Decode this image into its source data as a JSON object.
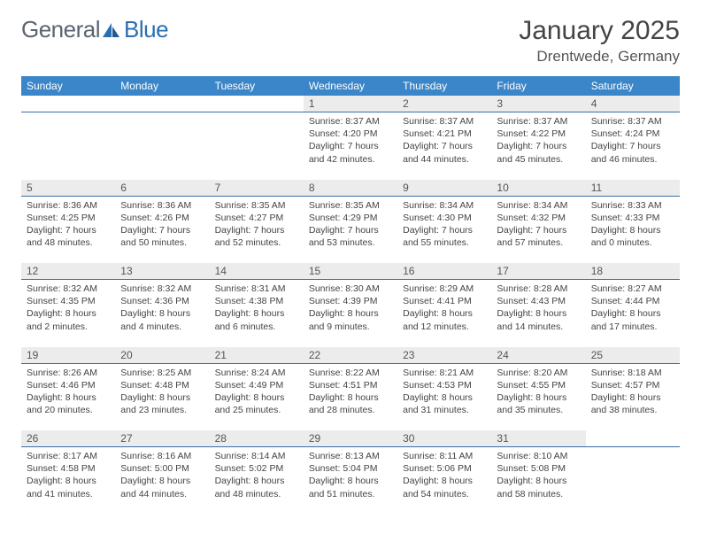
{
  "brand": {
    "part1": "General",
    "part2": "Blue"
  },
  "title": "January 2025",
  "location": "Drentwede, Germany",
  "colors": {
    "header_bg": "#3a86c8",
    "header_fg": "#ffffff",
    "daynum_bg": "#ececec",
    "separator": "#3a6ea5",
    "text": "#444444",
    "logo_gray": "#5a6570",
    "logo_blue": "#2b6fb0"
  },
  "days_of_week": [
    "Sunday",
    "Monday",
    "Tuesday",
    "Wednesday",
    "Thursday",
    "Friday",
    "Saturday"
  ],
  "weeks": [
    [
      {
        "n": "",
        "sr": "",
        "ss": "",
        "dl": ""
      },
      {
        "n": "",
        "sr": "",
        "ss": "",
        "dl": ""
      },
      {
        "n": "",
        "sr": "",
        "ss": "",
        "dl": ""
      },
      {
        "n": "1",
        "sr": "8:37 AM",
        "ss": "4:20 PM",
        "dl": "7 hours and 42 minutes."
      },
      {
        "n": "2",
        "sr": "8:37 AM",
        "ss": "4:21 PM",
        "dl": "7 hours and 44 minutes."
      },
      {
        "n": "3",
        "sr": "8:37 AM",
        "ss": "4:22 PM",
        "dl": "7 hours and 45 minutes."
      },
      {
        "n": "4",
        "sr": "8:37 AM",
        "ss": "4:24 PM",
        "dl": "7 hours and 46 minutes."
      }
    ],
    [
      {
        "n": "5",
        "sr": "8:36 AM",
        "ss": "4:25 PM",
        "dl": "7 hours and 48 minutes."
      },
      {
        "n": "6",
        "sr": "8:36 AM",
        "ss": "4:26 PM",
        "dl": "7 hours and 50 minutes."
      },
      {
        "n": "7",
        "sr": "8:35 AM",
        "ss": "4:27 PM",
        "dl": "7 hours and 52 minutes."
      },
      {
        "n": "8",
        "sr": "8:35 AM",
        "ss": "4:29 PM",
        "dl": "7 hours and 53 minutes."
      },
      {
        "n": "9",
        "sr": "8:34 AM",
        "ss": "4:30 PM",
        "dl": "7 hours and 55 minutes."
      },
      {
        "n": "10",
        "sr": "8:34 AM",
        "ss": "4:32 PM",
        "dl": "7 hours and 57 minutes."
      },
      {
        "n": "11",
        "sr": "8:33 AM",
        "ss": "4:33 PM",
        "dl": "8 hours and 0 minutes."
      }
    ],
    [
      {
        "n": "12",
        "sr": "8:32 AM",
        "ss": "4:35 PM",
        "dl": "8 hours and 2 minutes."
      },
      {
        "n": "13",
        "sr": "8:32 AM",
        "ss": "4:36 PM",
        "dl": "8 hours and 4 minutes."
      },
      {
        "n": "14",
        "sr": "8:31 AM",
        "ss": "4:38 PM",
        "dl": "8 hours and 6 minutes."
      },
      {
        "n": "15",
        "sr": "8:30 AM",
        "ss": "4:39 PM",
        "dl": "8 hours and 9 minutes."
      },
      {
        "n": "16",
        "sr": "8:29 AM",
        "ss": "4:41 PM",
        "dl": "8 hours and 12 minutes."
      },
      {
        "n": "17",
        "sr": "8:28 AM",
        "ss": "4:43 PM",
        "dl": "8 hours and 14 minutes."
      },
      {
        "n": "18",
        "sr": "8:27 AM",
        "ss": "4:44 PM",
        "dl": "8 hours and 17 minutes."
      }
    ],
    [
      {
        "n": "19",
        "sr": "8:26 AM",
        "ss": "4:46 PM",
        "dl": "8 hours and 20 minutes."
      },
      {
        "n": "20",
        "sr": "8:25 AM",
        "ss": "4:48 PM",
        "dl": "8 hours and 23 minutes."
      },
      {
        "n": "21",
        "sr": "8:24 AM",
        "ss": "4:49 PM",
        "dl": "8 hours and 25 minutes."
      },
      {
        "n": "22",
        "sr": "8:22 AM",
        "ss": "4:51 PM",
        "dl": "8 hours and 28 minutes."
      },
      {
        "n": "23",
        "sr": "8:21 AM",
        "ss": "4:53 PM",
        "dl": "8 hours and 31 minutes."
      },
      {
        "n": "24",
        "sr": "8:20 AM",
        "ss": "4:55 PM",
        "dl": "8 hours and 35 minutes."
      },
      {
        "n": "25",
        "sr": "8:18 AM",
        "ss": "4:57 PM",
        "dl": "8 hours and 38 minutes."
      }
    ],
    [
      {
        "n": "26",
        "sr": "8:17 AM",
        "ss": "4:58 PM",
        "dl": "8 hours and 41 minutes."
      },
      {
        "n": "27",
        "sr": "8:16 AM",
        "ss": "5:00 PM",
        "dl": "8 hours and 44 minutes."
      },
      {
        "n": "28",
        "sr": "8:14 AM",
        "ss": "5:02 PM",
        "dl": "8 hours and 48 minutes."
      },
      {
        "n": "29",
        "sr": "8:13 AM",
        "ss": "5:04 PM",
        "dl": "8 hours and 51 minutes."
      },
      {
        "n": "30",
        "sr": "8:11 AM",
        "ss": "5:06 PM",
        "dl": "8 hours and 54 minutes."
      },
      {
        "n": "31",
        "sr": "8:10 AM",
        "ss": "5:08 PM",
        "dl": "8 hours and 58 minutes."
      },
      {
        "n": "",
        "sr": "",
        "ss": "",
        "dl": ""
      }
    ]
  ]
}
